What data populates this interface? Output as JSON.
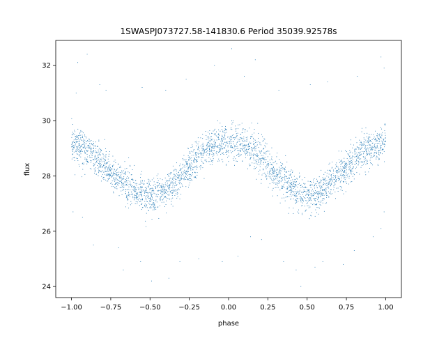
{
  "chart_data": {
    "type": "scatter",
    "title": "1SWASPJ073727.58-141830.6 Period 35039.92578s",
    "xlabel": "phase",
    "ylabel": "flux",
    "xlim": [
      -1.1,
      1.1
    ],
    "ylim": [
      23.6,
      32.9
    ],
    "xticks": [
      -1.0,
      -0.75,
      -0.5,
      -0.25,
      0.0,
      0.25,
      0.5,
      0.75,
      1.0
    ],
    "xtick_labels": [
      "−1.00",
      "−0.75",
      "−0.50",
      "−0.25",
      "0.00",
      "0.25",
      "0.50",
      "0.75",
      "1.00"
    ],
    "yticks": [
      24,
      26,
      28,
      30,
      32
    ],
    "ytick_labels": [
      "24",
      "26",
      "28",
      "30",
      "32"
    ],
    "grid": false,
    "legend": "none",
    "point_color": "#1f77b4",
    "series": [
      {
        "x": [
          -1.0,
          -0.95,
          -0.9,
          -0.85,
          -0.8,
          -0.75,
          -0.7,
          -0.65,
          -0.6,
          -0.55,
          -0.5,
          -0.45,
          -0.4,
          -0.35,
          -0.3,
          -0.25,
          -0.2,
          -0.15,
          -0.1,
          -0.05,
          0.0,
          0.05,
          0.1,
          0.15,
          0.2,
          0.25,
          0.3,
          0.35,
          0.4,
          0.45,
          0.5,
          0.55,
          0.6,
          0.65,
          0.7,
          0.75,
          0.8,
          0.85,
          0.9,
          0.95,
          1.0
        ],
        "y": [
          29.2,
          29.1,
          28.9,
          28.7,
          28.4,
          28.1,
          27.9,
          27.7,
          27.5,
          27.3,
          27.2,
          27.3,
          27.4,
          27.7,
          28.0,
          28.3,
          28.6,
          28.9,
          29.1,
          29.2,
          29.2,
          29.2,
          29.1,
          28.9,
          28.7,
          28.4,
          28.1,
          27.9,
          27.6,
          27.4,
          27.2,
          27.3,
          27.5,
          27.8,
          28.0,
          28.3,
          28.6,
          28.8,
          29.0,
          29.1,
          29.2
        ],
        "y_spread": [
          0.32,
          0.32,
          0.32,
          0.32,
          0.32,
          0.32,
          0.32,
          0.32,
          0.32,
          0.32,
          0.32,
          0.32,
          0.32,
          0.32,
          0.32,
          0.32,
          0.32,
          0.32,
          0.32,
          0.32,
          0.32,
          0.32,
          0.32,
          0.32,
          0.32,
          0.32,
          0.32,
          0.32,
          0.32,
          0.32,
          0.32,
          0.32,
          0.32,
          0.32,
          0.32,
          0.32,
          0.32,
          0.32,
          0.32,
          0.32,
          0.32
        ]
      }
    ],
    "outliers": [
      {
        "x": -0.96,
        "y": 32.1
      },
      {
        "x": -0.9,
        "y": 32.4
      },
      {
        "x": -0.82,
        "y": 31.3
      },
      {
        "x": -0.97,
        "y": 31.0
      },
      {
        "x": -0.78,
        "y": 31.1
      },
      {
        "x": -0.55,
        "y": 31.2
      },
      {
        "x": -0.4,
        "y": 31.1
      },
      {
        "x": -0.27,
        "y": 31.5
      },
      {
        "x": -0.09,
        "y": 32.0
      },
      {
        "x": 0.02,
        "y": 32.6
      },
      {
        "x": 0.1,
        "y": 31.6
      },
      {
        "x": 0.17,
        "y": 32.2
      },
      {
        "x": 0.32,
        "y": 31.1
      },
      {
        "x": 0.52,
        "y": 31.3
      },
      {
        "x": 0.63,
        "y": 31.4
      },
      {
        "x": 0.82,
        "y": 31.6
      },
      {
        "x": 0.97,
        "y": 32.3
      },
      {
        "x": 0.99,
        "y": 31.9
      },
      {
        "x": -0.93,
        "y": 26.5
      },
      {
        "x": -0.86,
        "y": 25.5
      },
      {
        "x": -0.99,
        "y": 26.7
      },
      {
        "x": -0.7,
        "y": 25.4
      },
      {
        "x": -0.56,
        "y": 24.9
      },
      {
        "x": -0.49,
        "y": 24.2
      },
      {
        "x": -0.38,
        "y": 24.3
      },
      {
        "x": -0.31,
        "y": 24.9
      },
      {
        "x": -0.19,
        "y": 25.0
      },
      {
        "x": -0.04,
        "y": 24.9
      },
      {
        "x": 0.06,
        "y": 25.1
      },
      {
        "x": 0.21,
        "y": 25.7
      },
      {
        "x": 0.35,
        "y": 24.9
      },
      {
        "x": 0.43,
        "y": 24.6
      },
      {
        "x": 0.46,
        "y": 24.0
      },
      {
        "x": 0.6,
        "y": 24.9
      },
      {
        "x": 0.73,
        "y": 24.8
      },
      {
        "x": 0.8,
        "y": 25.3
      },
      {
        "x": 0.92,
        "y": 25.8
      },
      {
        "x": 0.97,
        "y": 26.1
      },
      {
        "x": 0.99,
        "y": 26.7
      },
      {
        "x": -0.67,
        "y": 24.6
      },
      {
        "x": 0.55,
        "y": 24.7
      },
      {
        "x": 0.14,
        "y": 25.8
      }
    ]
  }
}
